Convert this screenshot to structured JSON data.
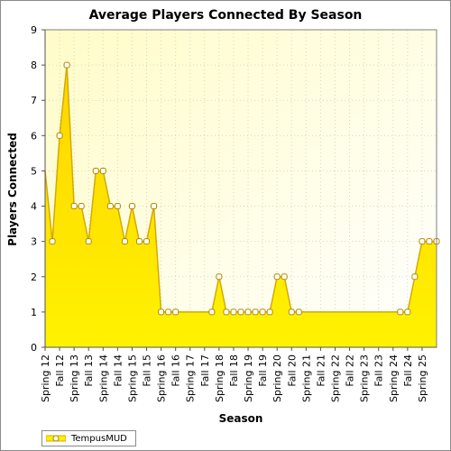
{
  "chart_data": {
    "type": "area",
    "title": "Average Players Connected By Season",
    "xlabel": "Season",
    "ylabel": "Players Connected",
    "ylim": [
      0,
      9
    ],
    "yticks": [
      0,
      1,
      2,
      3,
      4,
      5,
      6,
      7,
      8,
      9
    ],
    "grid": true,
    "legend_placement": "bottom-left",
    "colors": {
      "fill": "#ffee00",
      "line": "#d4a900",
      "marker_fill": "#ffffff",
      "marker_stroke": "#b08c00",
      "background": "#fffde0"
    },
    "categories": [
      "Spring 12",
      "Fall 12",
      "Spring 13",
      "Fall 13",
      "Spring 14",
      "Fall 14",
      "Spring 15",
      "Fall 15",
      "Spring 16",
      "Fall 16",
      "Spring 17",
      "Fall 17",
      "Spring 18",
      "Fall 18",
      "Spring 19",
      "Fall 19",
      "Spring 20",
      "Fall 20",
      "Spring 21",
      "Fall 21",
      "Spring 22",
      "Fall 22",
      "Spring 23",
      "Fall 23",
      "Spring 24",
      "Fall 24",
      "Spring 25"
    ],
    "series": [
      {
        "name": "TempusMUD",
        "x": [
          0,
          0.5,
          1,
          1.5,
          2,
          2.5,
          3,
          3.5,
          4,
          4.5,
          5,
          5.5,
          6,
          6.5,
          7,
          7.5,
          8,
          8.5,
          9,
          9.5,
          11.5,
          12,
          12.5,
          13,
          13.5,
          14,
          14.5,
          15,
          15.5,
          16,
          16.5,
          17,
          17.5,
          24.5,
          25,
          25.5,
          26,
          26.5,
          27
        ],
        "values": [
          5,
          3,
          6,
          8,
          4,
          4,
          3,
          5,
          5,
          4,
          4,
          3,
          4,
          3,
          3,
          4,
          1,
          1,
          1,
          1,
          1,
          2,
          1,
          1,
          1,
          1,
          1,
          1,
          1,
          2,
          2,
          1,
          1,
          1,
          1,
          2,
          3,
          3,
          3
        ],
        "markers": [
          false,
          true,
          true,
          true,
          true,
          true,
          true,
          true,
          true,
          true,
          true,
          true,
          true,
          true,
          true,
          true,
          true,
          true,
          true,
          false,
          true,
          true,
          true,
          true,
          true,
          true,
          true,
          true,
          true,
          true,
          true,
          true,
          true,
          true,
          true,
          true,
          true,
          true,
          true
        ]
      }
    ]
  }
}
